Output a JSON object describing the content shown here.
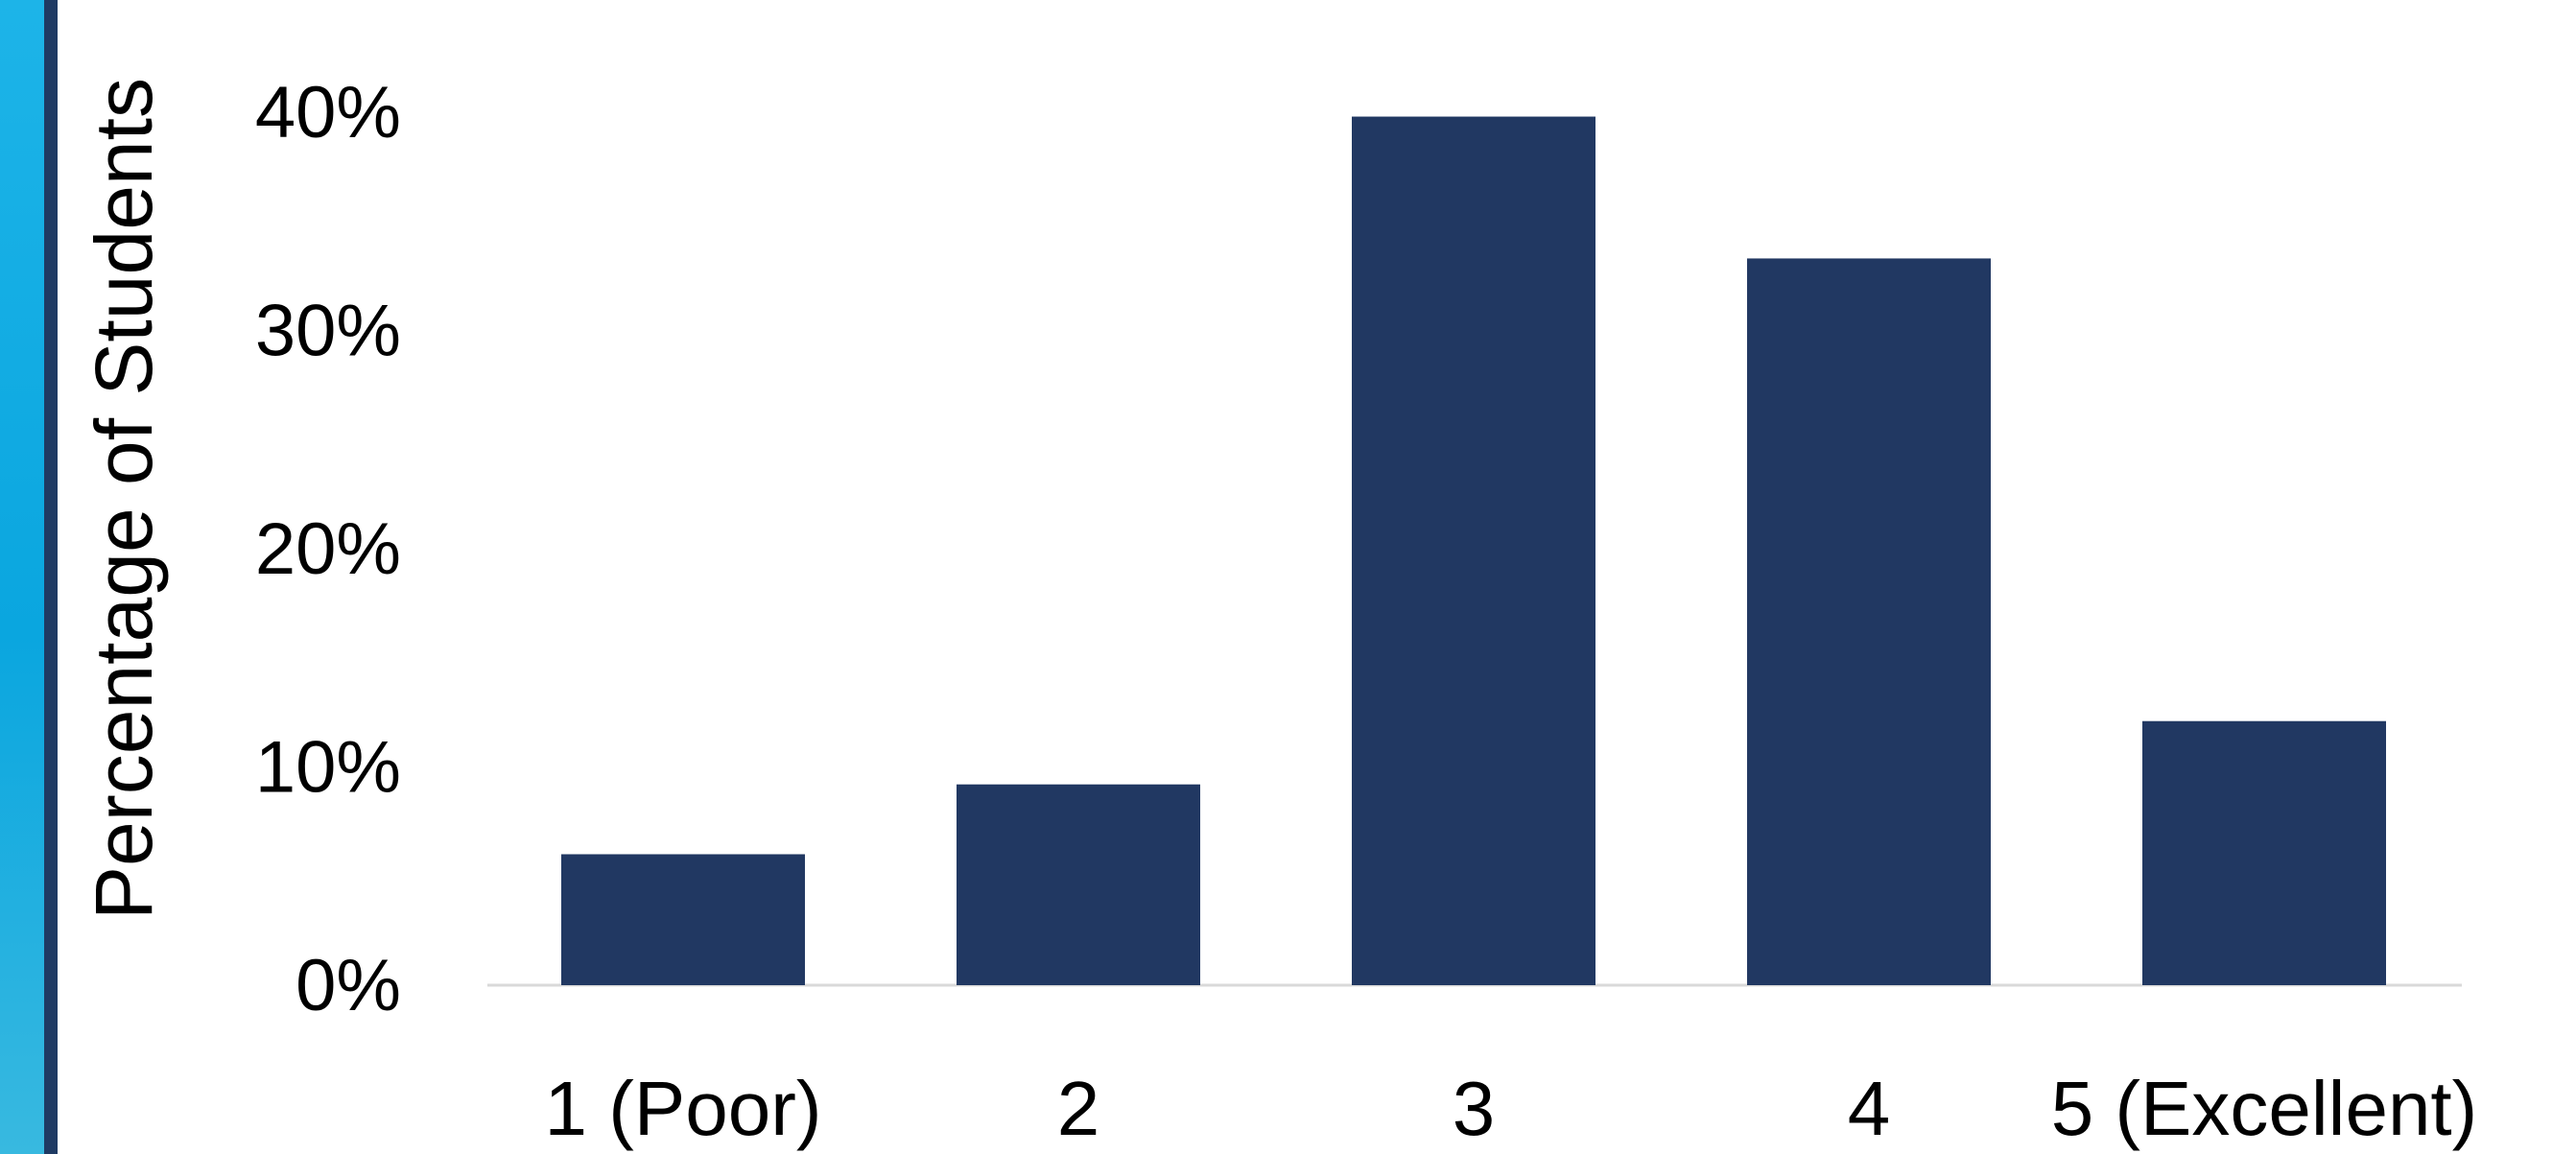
{
  "chart_data": {
    "type": "bar",
    "categories": [
      "1 (Poor)",
      "2",
      "3",
      "4",
      "5 (Excellent)"
    ],
    "values": [
      6,
      9.2,
      39.8,
      33.3,
      12.1
    ],
    "ylabel": "Percentage of Students",
    "xlabel": "",
    "ylim": [
      0,
      40
    ],
    "yticks": [
      "0%",
      "10%",
      "20%",
      "30%",
      "40%"
    ],
    "ytick_values": [
      0,
      10,
      20,
      30,
      40
    ],
    "grid": false,
    "bar_color": "#213862",
    "axis_color": "#d9d9d9"
  },
  "decor": {
    "accent_color": "#12ade3",
    "accent_edge_color": "#1f3a63"
  }
}
